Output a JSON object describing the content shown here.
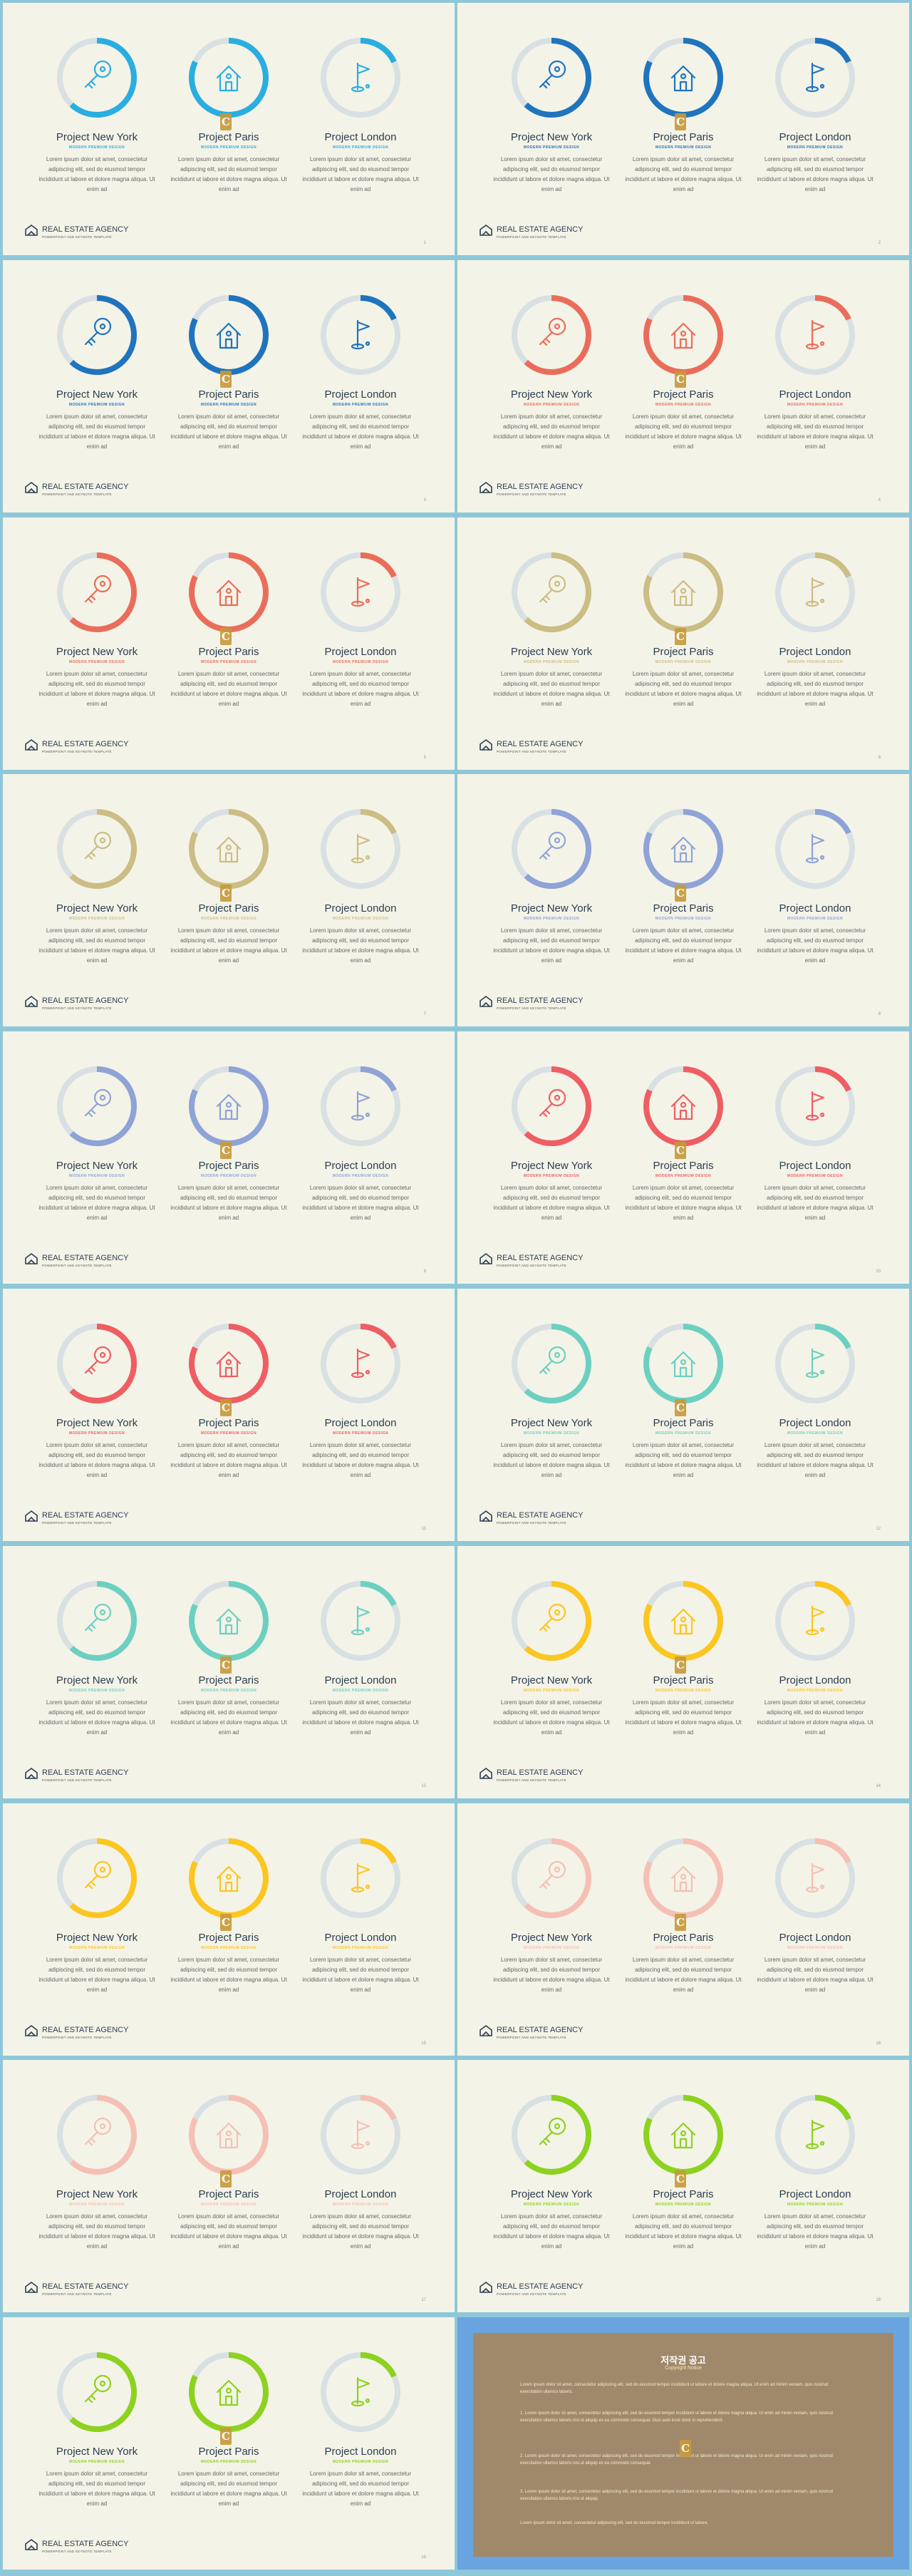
{
  "projects": [
    {
      "title": "Project New York",
      "subtitle": "MODERN PREMIUM DESIGN",
      "body": "Lorem ipsum dolor sit amet, consectetur adipiscing elit, sed do eiusmod tempor incididunt ut labore et dolore magna aliqua. Ut enim ad"
    },
    {
      "title": "Project Paris",
      "subtitle": "MODERN PREMIUM DESIGN",
      "body": "Lorem ipsum dolor sit amet, consectetur adipiscing elit, sed do eiusmod tempor incididunt ut labore et dolore magna aliqua. Ut enim ad"
    },
    {
      "title": "Project London",
      "subtitle": "MODERN PREMIUM DESIGN",
      "body": "Lorem ipsum dolor sit amet, consectetur adipiscing elit, sed do eiusmod tempor incididunt ut labore et dolore magna aliqua. Ut enim ad"
    }
  ],
  "brand": "REAL ESTATE AGENCY",
  "tagline": "POWERPOINT AND KEYNOTE TEMPLATE",
  "slides": [
    {
      "color": "#29aee0",
      "levels": [
        0.62,
        0.82,
        0.18
      ],
      "page": "1"
    },
    {
      "color": "#1f74bd",
      "levels": [
        0.62,
        0.82,
        0.18
      ],
      "page": "2"
    },
    {
      "color": "#1f74bd",
      "levels": [
        0.62,
        0.82,
        0.18
      ],
      "page": "3"
    },
    {
      "color": "#ea6d5a",
      "levels": [
        0.62,
        0.82,
        0.18
      ],
      "page": "4"
    },
    {
      "color": "#ea6d5a",
      "levels": [
        0.62,
        0.82,
        0.18
      ],
      "page": "5"
    },
    {
      "color": "#cbbd84",
      "levels": [
        0.62,
        0.82,
        0.18
      ],
      "page": "6"
    },
    {
      "color": "#cbbd84",
      "levels": [
        0.62,
        0.82,
        0.18
      ],
      "page": "7"
    },
    {
      "color": "#8ea3d6",
      "levels": [
        0.62,
        0.82,
        0.18
      ],
      "page": "8"
    },
    {
      "color": "#8ea3d6",
      "levels": [
        0.62,
        0.82,
        0.18
      ],
      "page": "9"
    },
    {
      "color": "#ee5e62",
      "levels": [
        0.62,
        0.82,
        0.18
      ],
      "page": "10"
    },
    {
      "color": "#ee5e62",
      "levels": [
        0.62,
        0.82,
        0.18
      ],
      "page": "11"
    },
    {
      "color": "#6cd0c1",
      "levels": [
        0.62,
        0.82,
        0.18
      ],
      "page": "12"
    },
    {
      "color": "#6cd0c1",
      "levels": [
        0.62,
        0.82,
        0.18
      ],
      "page": "13"
    },
    {
      "color": "#fbc61f",
      "levels": [
        0.62,
        0.82,
        0.18
      ],
      "page": "14"
    },
    {
      "color": "#fbc61f",
      "levels": [
        0.62,
        0.82,
        0.18
      ],
      "page": "15"
    },
    {
      "color": "#f5c0b3",
      "levels": [
        0.62,
        0.82,
        0.18
      ],
      "page": "16"
    },
    {
      "color": "#f5c0b3",
      "levels": [
        0.62,
        0.82,
        0.18
      ],
      "page": "17"
    },
    {
      "color": "#8cd21f",
      "levels": [
        0.62,
        0.82,
        0.18
      ],
      "page": "18"
    },
    {
      "color": "#8cd21f",
      "levels": [
        0.62,
        0.82,
        0.18
      ],
      "page": "19"
    }
  ],
  "icons": [
    "key-icon",
    "house-icon",
    "flag-icon"
  ],
  "char_mark": "C",
  "copyright": {
    "title": "저작권 공고",
    "subtitle": "Copyright Notice",
    "paragraphs": [
      "Lorem ipsum dolor sit amet, consectetur adipiscing elit, sed do eiusmod tempor incididunt ut labore et dolore magna aliqua. Ut enim ad minim veniam, quis nostrud exercitation ullamco laboris.",
      "1. Lorem ipsum dolor sit amet, consectetur adipiscing elit, sed do eiusmod tempor incididunt ut labore et dolore magna aliqua. Ut enim ad minim veniam, quis nostrud exercitation ullamco laboris nisi ut aliquip ex ea commodo consequat. Duis aute irure dolor in reprehenderit.",
      "2. Lorem ipsum dolor sit amet, consectetur adipiscing elit, sed do eiusmod tempor incididunt ut labore et dolore magna aliqua. Ut enim ad minim veniam, quis nostrud exercitation ullamco laboris nisi ut aliquip ex ea commodo consequat.",
      "3. Lorem ipsum dolor sit amet, consectetur adipiscing elit, sed do eiusmod tempor incididunt ut labore et dolore magna aliqua. Ut enim ad minim veniam, quis nostrud exercitation ullamco laboris nisi ut aliquip.",
      "Lorem ipsum dolor sit amet, consectetur adipiscing elit, sed do eiusmod tempor incididunt ut labore."
    ]
  },
  "colors": {
    "background": "#8ec8d8",
    "slide": "#f4f3e8",
    "ring_track": "#d9e0e3",
    "copyright_frame": "#6aa4e0",
    "copyright_inner": "#a0896a"
  }
}
